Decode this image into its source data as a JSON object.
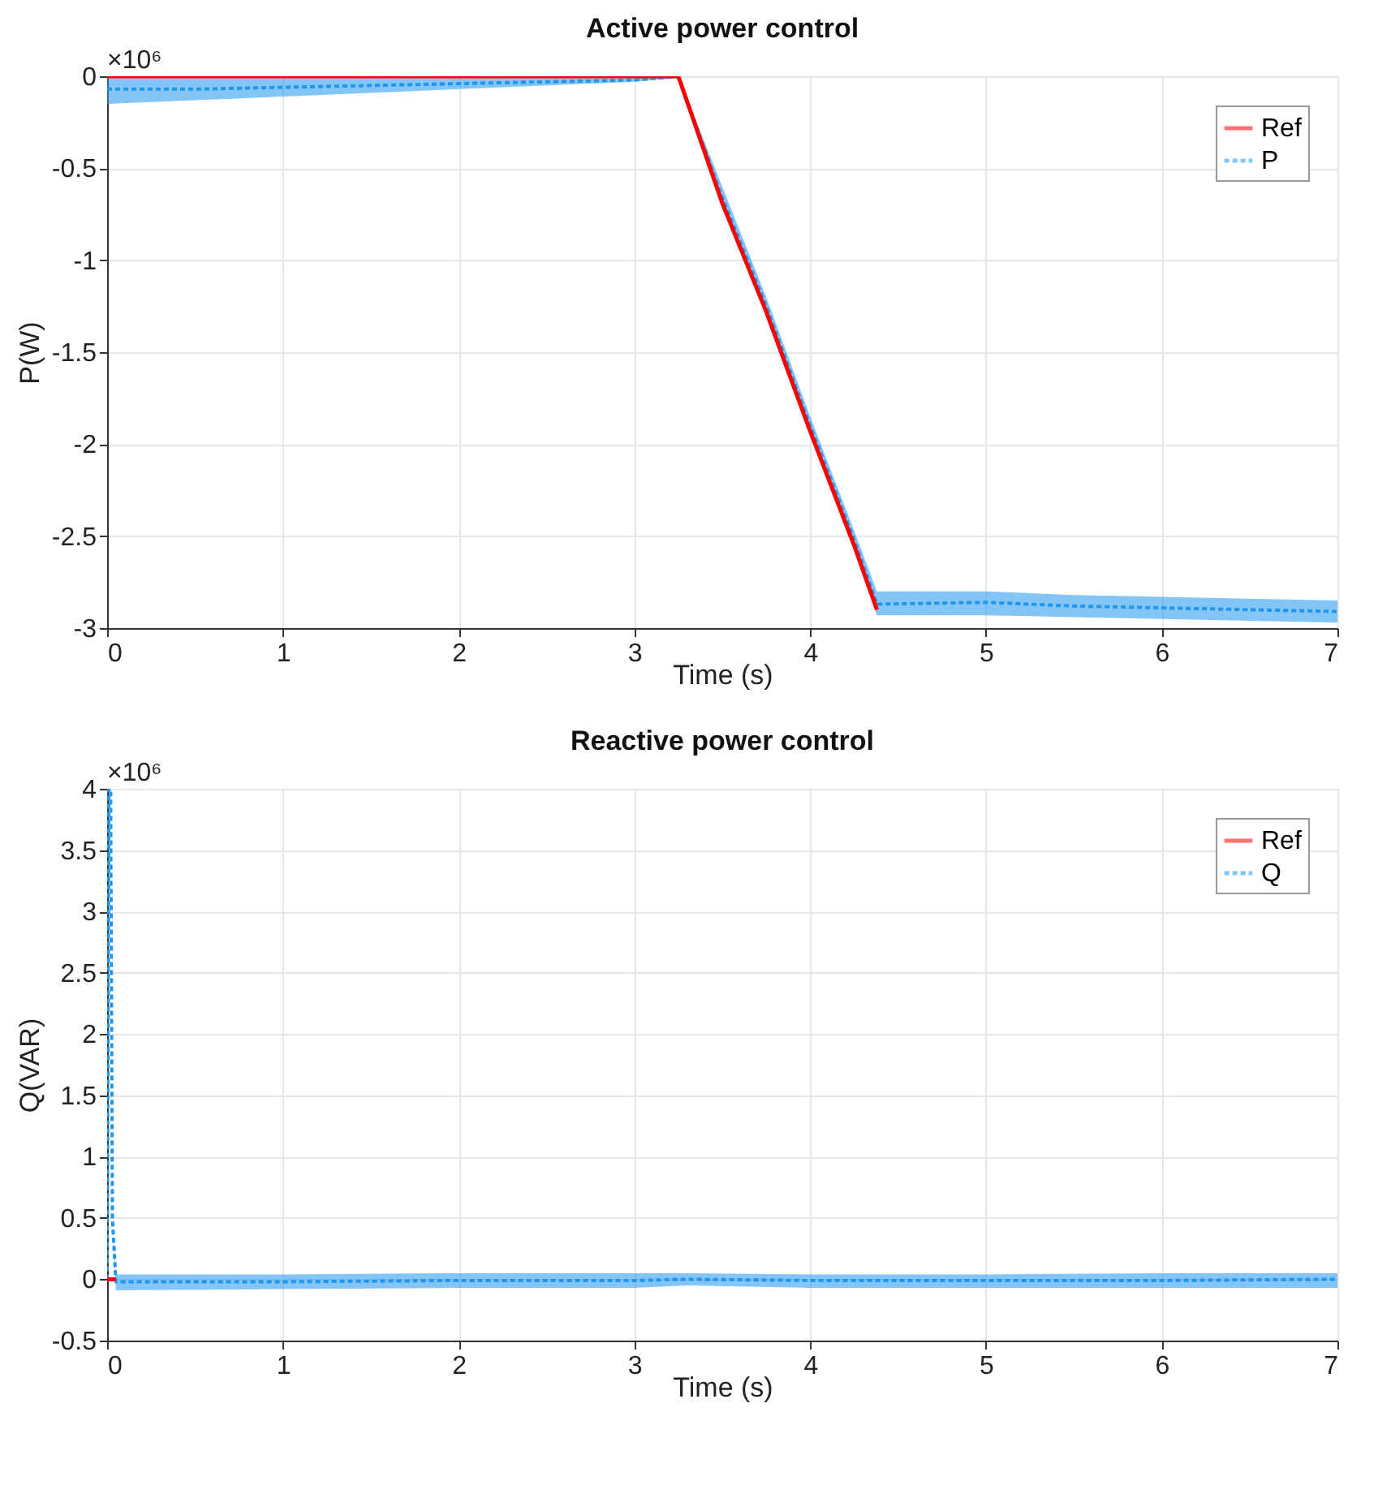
{
  "chart_data": [
    {
      "type": "line",
      "title": "Active power control",
      "xlabel": "Time (s)",
      "ylabel": "P(W)",
      "annotations": [
        "×10⁶"
      ],
      "xlim": [
        0,
        7
      ],
      "xticks": [
        0,
        1,
        2,
        3,
        4,
        5,
        6,
        7
      ],
      "ylim": [
        -3,
        0
      ],
      "yticks": [
        -3,
        -2.5,
        -2,
        -1.5,
        -1,
        -0.5,
        0
      ],
      "grid": true,
      "legend": "top right",
      "series": [
        {
          "name": "Ref",
          "color": "#ff0000",
          "line_style": "solid",
          "x": [
            0,
            3.25,
            3.5,
            3.75,
            4,
            4.25,
            4.38
          ],
          "values": [
            0,
            0,
            -0.69,
            -1.28,
            -1.93,
            -2.55,
            -2.9
          ]
        },
        {
          "name": "P",
          "color": "#1e96f0",
          "line_style": "dashed",
          "x": [
            0,
            0.5,
            1,
            1.5,
            2,
            2.5,
            3,
            3.25,
            3.5,
            3.75,
            4,
            4.25,
            4.38,
            5,
            5.5,
            6,
            6.5,
            7
          ],
          "values": [
            -0.07,
            -0.07,
            -0.06,
            -0.05,
            -0.04,
            -0.03,
            -0.02,
            0,
            -0.66,
            -1.25,
            -1.9,
            -2.52,
            -2.87,
            -2.86,
            -2.88,
            -2.89,
            -2.9,
            -2.91
          ],
          "lower": [
            -0.15,
            -0.13,
            -0.11,
            -0.09,
            -0.07,
            -0.05,
            -0.03,
            -0.01,
            -0.7,
            -1.3,
            -1.95,
            -2.57,
            -2.93,
            -2.93,
            -2.94,
            -2.95,
            -2.96,
            -2.97
          ],
          "upper": [
            -0.01,
            -0.01,
            -0.01,
            -0.01,
            -0.01,
            -0.01,
            -0.01,
            0,
            -0.6,
            -1.2,
            -1.85,
            -2.47,
            -2.8,
            -2.8,
            -2.82,
            -2.83,
            -2.84,
            -2.85
          ]
        }
      ]
    },
    {
      "type": "line",
      "title": "Reactive power control",
      "xlabel": "Time (s)",
      "ylabel": "Q(VAR)",
      "annotations": [
        "×10⁶"
      ],
      "xlim": [
        0,
        7
      ],
      "xticks": [
        0,
        1,
        2,
        3,
        4,
        5,
        6,
        7
      ],
      "ylim": [
        -0.5,
        4
      ],
      "yticks": [
        -0.5,
        0,
        0.5,
        1,
        1.5,
        2,
        2.5,
        3,
        3.5,
        4
      ],
      "grid": true,
      "legend": "top right",
      "series": [
        {
          "name": "Ref",
          "color": "#ff0000",
          "line_style": "solid",
          "x": [
            0,
            0.05
          ],
          "values": [
            0,
            0
          ]
        },
        {
          "name": "Q",
          "color": "#1e96f0",
          "line_style": "dashed",
          "x": [
            0,
            0.01,
            0.02,
            0.03,
            0.05,
            1,
            2,
            3,
            3.3,
            4,
            5,
            6,
            7
          ],
          "values": [
            0,
            4,
            4,
            0.5,
            -0.02,
            -0.02,
            -0.01,
            -0.01,
            0,
            -0.01,
            -0.01,
            -0.01,
            0
          ],
          "lower": [
            0,
            4,
            4,
            0.5,
            -0.09,
            -0.08,
            -0.07,
            -0.07,
            -0.05,
            -0.07,
            -0.07,
            -0.07,
            -0.07
          ],
          "upper": [
            0,
            4,
            4,
            0.5,
            0.04,
            0.04,
            0.05,
            0.05,
            0.05,
            0.04,
            0.04,
            0.05,
            0.05
          ]
        }
      ]
    }
  ]
}
